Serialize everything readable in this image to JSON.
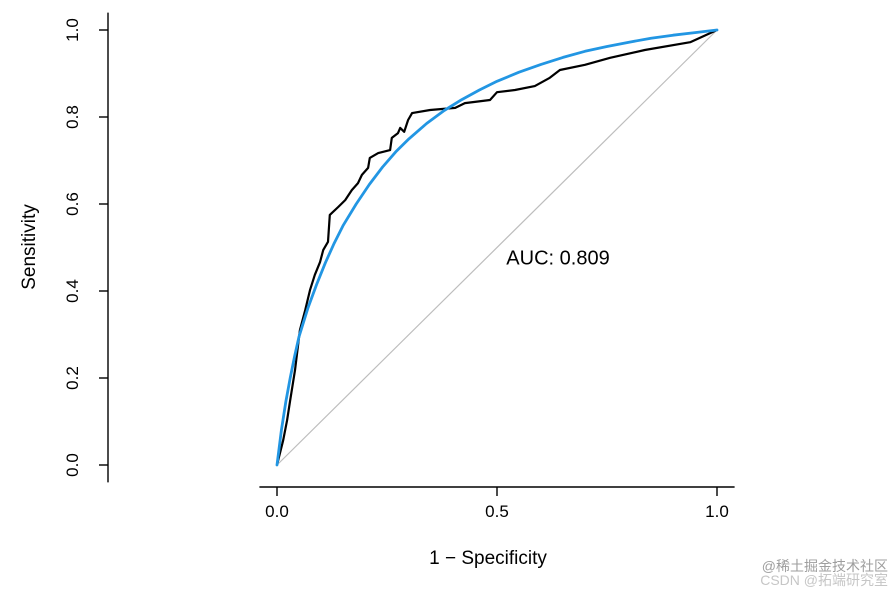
{
  "chart_data": {
    "type": "line",
    "title": "",
    "xlabel": "1 − Specificity",
    "ylabel": "Sensitivity",
    "xlim": [
      0,
      1
    ],
    "ylim": [
      0,
      1
    ],
    "grid": false,
    "legend_position": "none",
    "x_ticks": [
      0.0,
      0.5,
      1.0
    ],
    "x_tick_labels": [
      "0.0",
      "0.5",
      "1.0"
    ],
    "y_ticks": [
      0.0,
      0.2,
      0.4,
      0.6,
      0.8,
      1.0
    ],
    "y_tick_labels": [
      "0.0",
      "0.2",
      "0.4",
      "0.6",
      "0.8",
      "1.0"
    ],
    "annotation": {
      "text": "AUC: 0.809",
      "x": 0.64,
      "y": 0.47
    },
    "reference_line": {
      "from": [
        0,
        0
      ],
      "to": [
        1,
        1
      ],
      "color": "#bdbdbd"
    },
    "axis_color": "#000000",
    "series": [
      {
        "name": "empirical-roc-curve",
        "color": "#000000",
        "width": 2.2,
        "points": [
          [
            0,
            0
          ],
          [
            0.014,
            0.057
          ],
          [
            0.023,
            0.103
          ],
          [
            0.03,
            0.149
          ],
          [
            0.041,
            0.218
          ],
          [
            0.052,
            0.31
          ],
          [
            0.064,
            0.356
          ],
          [
            0.075,
            0.402
          ],
          [
            0.086,
            0.437
          ],
          [
            0.098,
            0.467
          ],
          [
            0.105,
            0.494
          ],
          [
            0.116,
            0.513
          ],
          [
            0.12,
            0.575
          ],
          [
            0.139,
            0.593
          ],
          [
            0.155,
            0.609
          ],
          [
            0.17,
            0.632
          ],
          [
            0.184,
            0.648
          ],
          [
            0.193,
            0.667
          ],
          [
            0.207,
            0.683
          ],
          [
            0.211,
            0.706
          ],
          [
            0.23,
            0.717
          ],
          [
            0.257,
            0.724
          ],
          [
            0.261,
            0.752
          ],
          [
            0.275,
            0.763
          ],
          [
            0.28,
            0.775
          ],
          [
            0.289,
            0.766
          ],
          [
            0.298,
            0.793
          ],
          [
            0.307,
            0.809
          ],
          [
            0.348,
            0.816
          ],
          [
            0.405,
            0.821
          ],
          [
            0.427,
            0.832
          ],
          [
            0.484,
            0.839
          ],
          [
            0.5,
            0.857
          ],
          [
            0.541,
            0.862
          ],
          [
            0.586,
            0.871
          ],
          [
            0.62,
            0.89
          ],
          [
            0.643,
            0.908
          ],
          [
            0.7,
            0.92
          ],
          [
            0.757,
            0.936
          ],
          [
            0.836,
            0.954
          ],
          [
            0.939,
            0.972
          ],
          [
            1,
            1
          ]
        ]
      },
      {
        "name": "smoothed-roc-curve",
        "color": "#2296E3",
        "width": 2.8,
        "points": [
          [
            0,
            0
          ],
          [
            0.005,
            0.04
          ],
          [
            0.01,
            0.08
          ],
          [
            0.02,
            0.145
          ],
          [
            0.03,
            0.2
          ],
          [
            0.04,
            0.25
          ],
          [
            0.05,
            0.295
          ],
          [
            0.07,
            0.36
          ],
          [
            0.09,
            0.415
          ],
          [
            0.11,
            0.465
          ],
          [
            0.13,
            0.51
          ],
          [
            0.15,
            0.55
          ],
          [
            0.18,
            0.6
          ],
          [
            0.21,
            0.645
          ],
          [
            0.24,
            0.685
          ],
          [
            0.27,
            0.72
          ],
          [
            0.3,
            0.75
          ],
          [
            0.34,
            0.785
          ],
          [
            0.38,
            0.815
          ],
          [
            0.42,
            0.84
          ],
          [
            0.46,
            0.862
          ],
          [
            0.5,
            0.882
          ],
          [
            0.55,
            0.903
          ],
          [
            0.6,
            0.921
          ],
          [
            0.65,
            0.937
          ],
          [
            0.7,
            0.951
          ],
          [
            0.75,
            0.962
          ],
          [
            0.8,
            0.972
          ],
          [
            0.85,
            0.981
          ],
          [
            0.9,
            0.988
          ],
          [
            0.95,
            0.994
          ],
          [
            1,
            1
          ]
        ]
      }
    ]
  },
  "watermarks": [
    {
      "text": "@稀土掘金技术社区",
      "color": "#9e9e9e"
    },
    {
      "text": "CSDN @拓端研究室",
      "color": "#c6c6c6"
    }
  ]
}
